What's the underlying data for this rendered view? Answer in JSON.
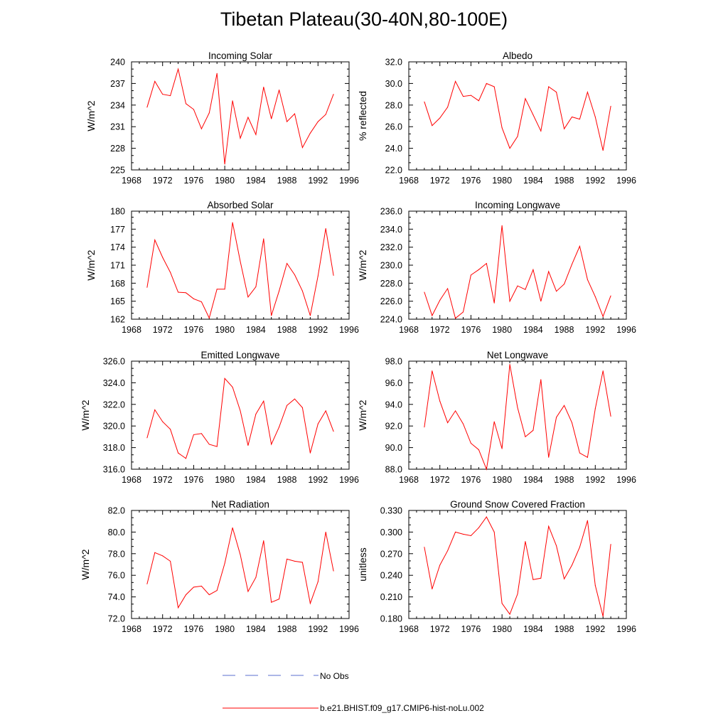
{
  "title": "Tibetan Plateau(30-40N,80-100E)",
  "colors": {
    "model": "#ff0000",
    "obs": "#5b6fcf",
    "axis": "#000000"
  },
  "legend": [
    {
      "label": "No Obs",
      "style": "dashed",
      "color": "#5b6fcf"
    },
    {
      "label": "b.e21.BHIST.f09_g17.CMIP6-hist-noLu.002",
      "style": "solid",
      "color": "#ff0000"
    }
  ],
  "chart_data": [
    {
      "type": "line",
      "title": "Incoming Solar",
      "xlabel": "",
      "ylabel": "W/m^2",
      "xlim": [
        1968,
        1996
      ],
      "ylim": [
        225,
        240
      ],
      "xticks": [
        "1968",
        "1972",
        "1976",
        "1980",
        "1984",
        "1988",
        "1992",
        "1996"
      ],
      "yticks": [
        "225",
        "228",
        "231",
        "234",
        "237",
        "240"
      ],
      "x": [
        1970,
        1971,
        1972,
        1973,
        1974,
        1975,
        1976,
        1977,
        1978,
        1979,
        1980,
        1981,
        1982,
        1983,
        1984,
        1985,
        1986,
        1987,
        1988,
        1989,
        1990,
        1991,
        1992,
        1993,
        1994
      ],
      "series": [
        {
          "name": "b.e21.BHIST.f09_g17.CMIP6-hist-noLu.002",
          "values": [
            233.7,
            237.3,
            235.5,
            235.3,
            239.0,
            234.2,
            233.4,
            230.7,
            232.9,
            238.4,
            225.8,
            234.6,
            229.4,
            232.3,
            229.9,
            236.5,
            232.1,
            236.1,
            231.7,
            232.8,
            228.1,
            230.1,
            231.7,
            232.7,
            235.5
          ]
        }
      ],
      "grid": false
    },
    {
      "type": "line",
      "title": "Albedo",
      "xlabel": "",
      "ylabel": "% reflected",
      "xlim": [
        1968,
        1996
      ],
      "ylim": [
        22.0,
        32.0
      ],
      "xticks": [
        "1968",
        "1972",
        "1976",
        "1980",
        "1984",
        "1988",
        "1992",
        "1996"
      ],
      "yticks": [
        "22.0",
        "24.0",
        "26.0",
        "28.0",
        "30.0",
        "32.0"
      ],
      "x": [
        1970,
        1971,
        1972,
        1973,
        1974,
        1975,
        1976,
        1977,
        1978,
        1979,
        1980,
        1981,
        1982,
        1983,
        1984,
        1985,
        1986,
        1987,
        1988,
        1989,
        1990,
        1991,
        1992,
        1993,
        1994
      ],
      "series": [
        {
          "name": "b.e21.BHIST.f09_g17.CMIP6-hist-noLu.002",
          "values": [
            28.3,
            26.1,
            26.8,
            27.8,
            30.2,
            28.8,
            28.9,
            28.4,
            30.0,
            29.7,
            25.9,
            24.0,
            25.1,
            28.6,
            27.1,
            25.6,
            29.7,
            29.2,
            25.8,
            26.9,
            26.7,
            29.2,
            26.9,
            23.8,
            27.9
          ]
        }
      ],
      "grid": false
    },
    {
      "type": "line",
      "title": "Absorbed Solar",
      "xlabel": "",
      "ylabel": "W/m^2",
      "xlim": [
        1968,
        1996
      ],
      "ylim": [
        162,
        180
      ],
      "xticks": [
        "1968",
        "1972",
        "1976",
        "1980",
        "1984",
        "1988",
        "1992",
        "1996"
      ],
      "yticks": [
        "162",
        "165",
        "168",
        "171",
        "174",
        "177",
        "180"
      ],
      "x": [
        1970,
        1971,
        1972,
        1973,
        1974,
        1975,
        1976,
        1977,
        1978,
        1979,
        1980,
        1981,
        1982,
        1983,
        1984,
        1985,
        1986,
        1987,
        1988,
        1989,
        1990,
        1991,
        1992,
        1993,
        1994
      ],
      "series": [
        {
          "name": "b.e21.BHIST.f09_g17.CMIP6-hist-noLu.002",
          "values": [
            167.3,
            175.2,
            172.3,
            169.8,
            166.5,
            166.4,
            165.4,
            164.9,
            162.2,
            167.0,
            167.0,
            178.1,
            171.6,
            165.7,
            167.4,
            175.4,
            162.6,
            166.7,
            171.3,
            169.4,
            166.7,
            162.6,
            169.2,
            177.1,
            169.3
          ]
        }
      ],
      "grid": false
    },
    {
      "type": "line",
      "title": "Incoming Longwave",
      "xlabel": "",
      "ylabel": "W/m^2",
      "xlim": [
        1968,
        1996
      ],
      "ylim": [
        224.0,
        236.0
      ],
      "xticks": [
        "1968",
        "1972",
        "1976",
        "1980",
        "1984",
        "1988",
        "1992",
        "1996"
      ],
      "yticks": [
        "224.0",
        "226.0",
        "228.0",
        "230.0",
        "232.0",
        "234.0",
        "236.0"
      ],
      "x": [
        1970,
        1971,
        1972,
        1973,
        1974,
        1975,
        1976,
        1977,
        1978,
        1979,
        1980,
        1981,
        1982,
        1983,
        1984,
        1985,
        1986,
        1987,
        1988,
        1989,
        1990,
        1991,
        1992,
        1993,
        1994
      ],
      "series": [
        {
          "name": "b.e21.BHIST.f09_g17.CMIP6-hist-noLu.002",
          "values": [
            227.0,
            224.4,
            226.1,
            227.4,
            224.1,
            224.8,
            228.9,
            229.5,
            230.2,
            225.8,
            234.4,
            226.0,
            227.7,
            227.3,
            229.5,
            226.0,
            229.3,
            227.1,
            227.9,
            230.1,
            232.1,
            228.4,
            226.5,
            224.3,
            226.6
          ]
        }
      ],
      "grid": false
    },
    {
      "type": "line",
      "title": "Emitted Longwave",
      "xlabel": "",
      "ylabel": "W/m^2",
      "xlim": [
        1968,
        1996
      ],
      "ylim": [
        316.0,
        326.0
      ],
      "xticks": [
        "1968",
        "1972",
        "1976",
        "1980",
        "1984",
        "1988",
        "1992",
        "1996"
      ],
      "yticks": [
        "316.0",
        "318.0",
        "320.0",
        "322.0",
        "324.0",
        "326.0"
      ],
      "x": [
        1970,
        1971,
        1972,
        1973,
        1974,
        1975,
        1976,
        1977,
        1978,
        1979,
        1980,
        1981,
        1982,
        1983,
        1984,
        1985,
        1986,
        1987,
        1988,
        1989,
        1990,
        1991,
        1992,
        1993,
        1994
      ],
      "series": [
        {
          "name": "b.e21.BHIST.f09_g17.CMIP6-hist-noLu.002",
          "values": [
            318.9,
            321.5,
            320.4,
            319.7,
            317.5,
            317.0,
            319.2,
            319.3,
            318.3,
            318.1,
            324.4,
            323.6,
            321.4,
            318.2,
            321.1,
            322.3,
            318.3,
            319.9,
            321.9,
            322.5,
            321.7,
            317.5,
            320.2,
            321.4,
            319.5
          ]
        }
      ],
      "grid": false
    },
    {
      "type": "line",
      "title": "Net Longwave",
      "xlabel": "",
      "ylabel": "W/m^2",
      "xlim": [
        1968,
        1996
      ],
      "ylim": [
        88.0,
        98.0
      ],
      "xticks": [
        "1968",
        "1972",
        "1976",
        "1980",
        "1984",
        "1988",
        "1992",
        "1996"
      ],
      "yticks": [
        "88.0",
        "90.0",
        "92.0",
        "94.0",
        "96.0",
        "98.0"
      ],
      "x": [
        1970,
        1971,
        1972,
        1973,
        1974,
        1975,
        1976,
        1977,
        1978,
        1979,
        1980,
        1981,
        1982,
        1983,
        1984,
        1985,
        1986,
        1987,
        1988,
        1989,
        1990,
        1991,
        1992,
        1993,
        1994
      ],
      "series": [
        {
          "name": "b.e21.BHIST.f09_g17.CMIP6-hist-noLu.002",
          "values": [
            91.9,
            97.1,
            94.3,
            92.3,
            93.4,
            92.2,
            90.4,
            89.8,
            88.0,
            92.4,
            89.9,
            97.7,
            93.7,
            91.0,
            91.6,
            96.3,
            89.1,
            92.8,
            93.9,
            92.3,
            89.5,
            89.1,
            93.6,
            97.1,
            92.9
          ]
        }
      ],
      "grid": false
    },
    {
      "type": "line",
      "title": "Net Radiation",
      "xlabel": "",
      "ylabel": "W/m^2",
      "xlim": [
        1968,
        1996
      ],
      "ylim": [
        72.0,
        82.0
      ],
      "xticks": [
        "1968",
        "1972",
        "1976",
        "1980",
        "1984",
        "1988",
        "1992",
        "1996"
      ],
      "yticks": [
        "72.0",
        "74.0",
        "76.0",
        "78.0",
        "80.0",
        "82.0"
      ],
      "x": [
        1970,
        1971,
        1972,
        1973,
        1974,
        1975,
        1976,
        1977,
        1978,
        1979,
        1980,
        1981,
        1982,
        1983,
        1984,
        1985,
        1986,
        1987,
        1988,
        1989,
        1990,
        1991,
        1992,
        1993,
        1994
      ],
      "series": [
        {
          "name": "b.e21.BHIST.f09_g17.CMIP6-hist-noLu.002",
          "values": [
            75.2,
            78.1,
            77.8,
            77.3,
            73.0,
            74.2,
            74.9,
            75.0,
            74.2,
            74.6,
            77.1,
            80.4,
            77.9,
            74.5,
            75.8,
            79.2,
            73.5,
            73.8,
            77.5,
            77.3,
            77.2,
            73.4,
            75.4,
            80.0,
            76.4
          ]
        }
      ],
      "grid": false
    },
    {
      "type": "line",
      "title": "Ground Snow Covered Fraction",
      "xlabel": "",
      "ylabel": "unitless",
      "xlim": [
        1968,
        1996
      ],
      "ylim": [
        0.18,
        0.33
      ],
      "xticks": [
        "1968",
        "1972",
        "1976",
        "1980",
        "1984",
        "1988",
        "1992",
        "1996"
      ],
      "yticks": [
        "0.180",
        "0.210",
        "0.240",
        "0.270",
        "0.300",
        "0.330"
      ],
      "x": [
        1970,
        1971,
        1972,
        1973,
        1974,
        1975,
        1976,
        1977,
        1978,
        1979,
        1980,
        1981,
        1982,
        1983,
        1984,
        1985,
        1986,
        1987,
        1988,
        1989,
        1990,
        1991,
        1992,
        1993,
        1994
      ],
      "series": [
        {
          "name": "b.e21.BHIST.f09_g17.CMIP6-hist-noLu.002",
          "values": [
            0.279,
            0.221,
            0.254,
            0.274,
            0.3,
            0.297,
            0.295,
            0.306,
            0.321,
            0.3,
            0.201,
            0.186,
            0.214,
            0.287,
            0.234,
            0.236,
            0.308,
            0.281,
            0.235,
            0.254,
            0.279,
            0.316,
            0.226,
            0.183,
            0.283
          ]
        }
      ],
      "grid": false
    }
  ]
}
